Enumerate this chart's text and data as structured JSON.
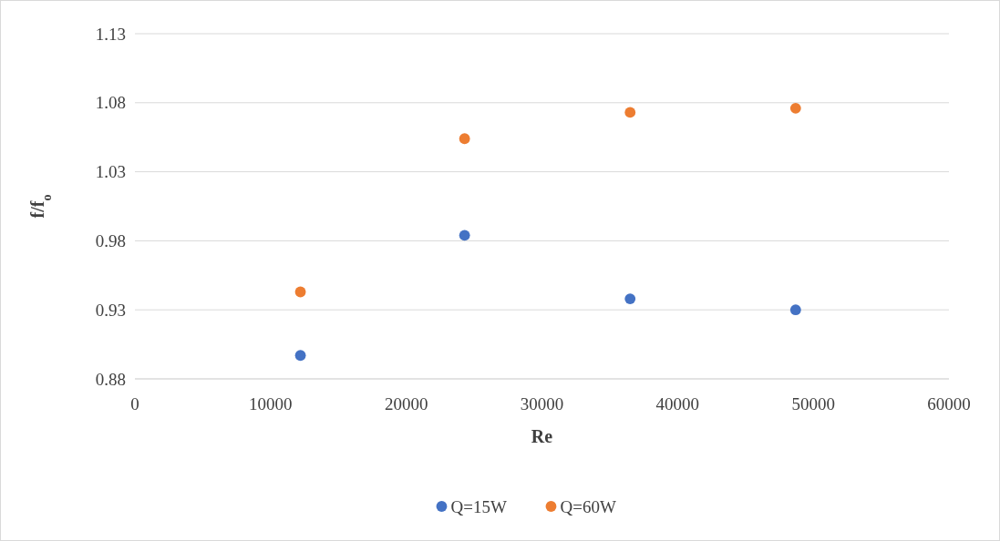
{
  "chart_data": {
    "type": "scatter",
    "xlabel": "Re",
    "ylabel": "f/f$_{o}$",
    "xlim": [
      0,
      60000
    ],
    "xticks": [
      0,
      10000,
      20000,
      30000,
      40000,
      50000,
      60000
    ],
    "ylim": [
      0.88,
      1.13
    ],
    "yticks": [
      0.88,
      0.93,
      0.98,
      1.03,
      1.08,
      1.13
    ],
    "grid": "y",
    "legend": "bottom",
    "marker": "circle",
    "series": [
      {
        "name": "Q=15W",
        "color": "#4472c4",
        "x": [
          12200,
          24300,
          36500,
          48700
        ],
        "values": [
          0.897,
          0.984,
          0.938,
          0.93
        ]
      },
      {
        "name": "Q=60W",
        "color": "#ed7d31",
        "x": [
          12200,
          24300,
          36500,
          48700
        ],
        "values": [
          0.943,
          1.054,
          1.073,
          1.076
        ]
      }
    ]
  }
}
